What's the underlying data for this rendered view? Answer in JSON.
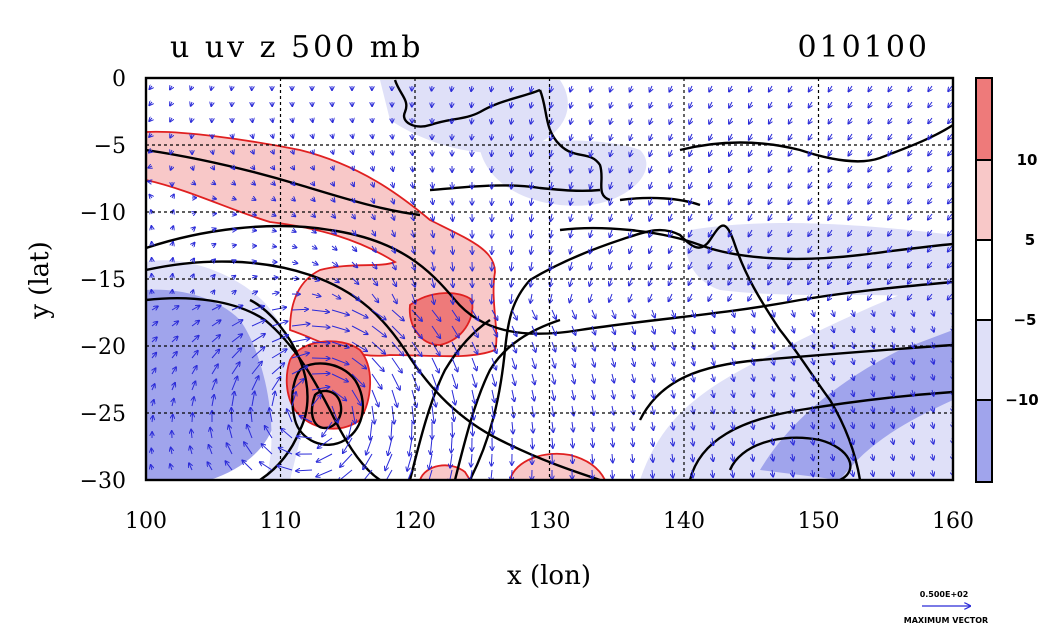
{
  "chart_data": {
    "type": "heatmap",
    "title": "u uv z 500 mb",
    "time_label": "010100",
    "xlabel": "x (lon)",
    "ylabel": "y (lat)",
    "xlim": [
      100,
      160
    ],
    "ylim": [
      -30,
      0
    ],
    "xticks": [
      "100",
      "110",
      "120",
      "130",
      "140",
      "150",
      "160"
    ],
    "yticks": [
      "0",
      "−5",
      "−10",
      "−15",
      "−20",
      "−25",
      "−30"
    ],
    "grid": true,
    "colorbar": {
      "levels": [
        "10",
        "5",
        "−5",
        "−10"
      ],
      "bins": [
        {
          "range": "> 10",
          "color": "#ee7a7a"
        },
        {
          "range": "5 to 10",
          "color": "#f8c8c8"
        },
        {
          "range": "-5 to 5",
          "color": "#ffffff"
        },
        {
          "range": "-10 to -5",
          "color": "#dfe0f8"
        },
        {
          "range": "< -10",
          "color": "#a0a4ec"
        }
      ]
    },
    "vector_key": {
      "value": "0.500E+02",
      "label": "MAXIMUM VECTOR"
    },
    "fields": [
      "u (shaded)",
      "uv (vectors)",
      "z (contours)"
    ]
  }
}
